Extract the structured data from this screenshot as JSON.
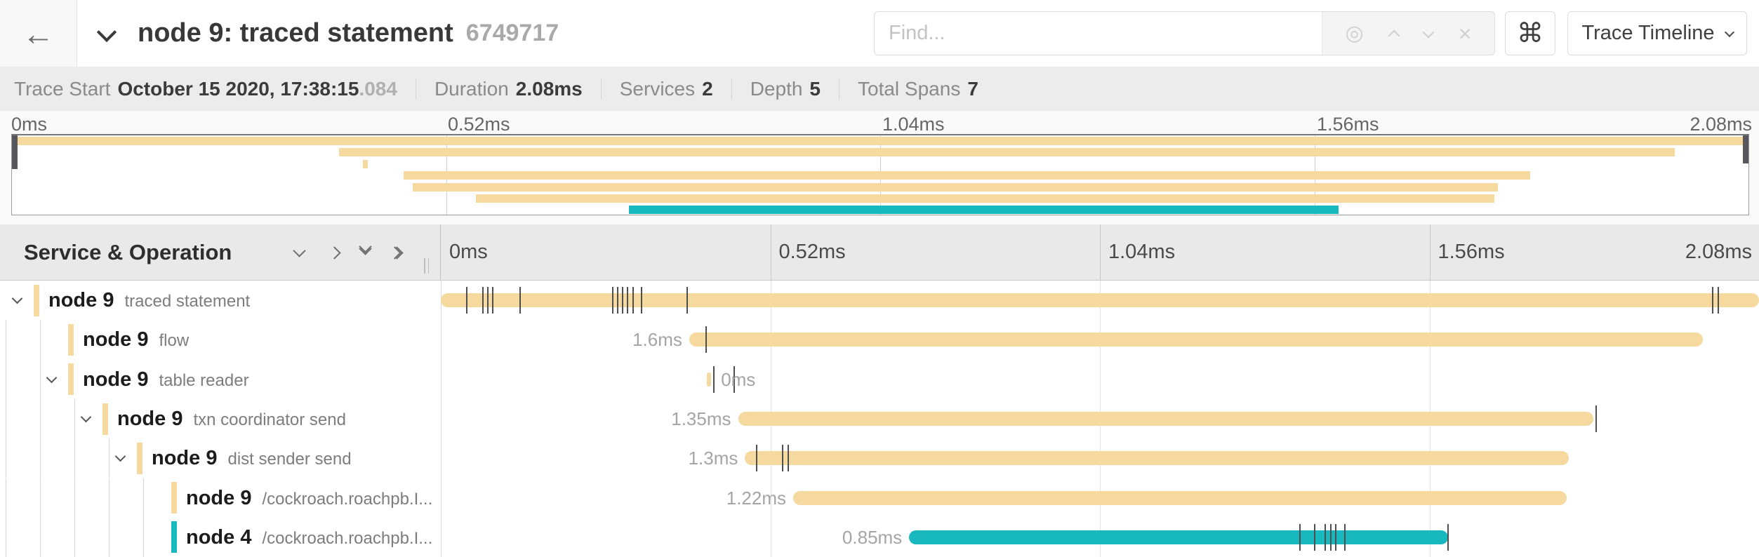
{
  "header": {
    "back_icon": "←",
    "title": "node 9: traced statement",
    "trace_id": "6749717",
    "find_placeholder": "Find...",
    "target_icon": "◎",
    "close_icon": "×",
    "command_symbol": "⌘",
    "view_selector_label": "Trace Timeline"
  },
  "summary": {
    "items": [
      {
        "label": "Trace Start",
        "value": "October 15 2020, 17:38:15",
        "suffix": ".084"
      },
      {
        "label": "Duration",
        "value": "2.08ms",
        "suffix": ""
      },
      {
        "label": "Services",
        "value": "2",
        "suffix": ""
      },
      {
        "label": "Depth",
        "value": "5",
        "suffix": ""
      },
      {
        "label": "Total Spans",
        "value": "7",
        "suffix": ""
      }
    ]
  },
  "timeline": {
    "left_header": "Service & Operation",
    "total_ms": 2.08,
    "axis_ticks": [
      "0ms",
      "0.52ms",
      "1.04ms",
      "1.56ms",
      "2.08ms"
    ]
  },
  "colors": {
    "tan": "#F5D99F",
    "teal": "#17B8BE"
  },
  "spans": [
    {
      "service": "node 9",
      "operation": "traced statement",
      "depth": 0,
      "expandable": true,
      "color": "tan",
      "start_ms": 0,
      "duration_ms": 2.08,
      "duration_label": "",
      "label_side": "none",
      "ticks_ms": [
        0.041,
        0.066,
        0.074,
        0.082,
        0.125,
        0.271,
        0.279,
        0.287,
        0.295,
        0.303,
        0.317,
        0.389,
        2.007,
        2.016
      ]
    },
    {
      "service": "node 9",
      "operation": "flow",
      "depth": 1,
      "expandable": false,
      "color": "tan",
      "start_ms": 0.392,
      "duration_ms": 1.6,
      "duration_label": "1.6ms",
      "label_side": "left",
      "ticks_ms": [
        0.419
      ]
    },
    {
      "service": "node 9",
      "operation": "table reader",
      "depth": 1,
      "expandable": true,
      "color": "tan",
      "start_ms": 0.42,
      "duration_ms": 0.006,
      "duration_label": "0ms",
      "label_side": "right",
      "ticks_ms": [
        0.431,
        0.463
      ]
    },
    {
      "service": "node 9",
      "operation": "txn coordinator send",
      "depth": 2,
      "expandable": true,
      "color": "tan",
      "start_ms": 0.469,
      "duration_ms": 1.35,
      "duration_label": "1.35ms",
      "label_side": "left",
      "ticks_ms": [
        1.823
      ]
    },
    {
      "service": "node 9",
      "operation": "dist sender send",
      "depth": 3,
      "expandable": true,
      "color": "tan",
      "start_ms": 0.48,
      "duration_ms": 1.3,
      "duration_label": "1.3ms",
      "label_side": "left",
      "ticks_ms": [
        0.498,
        0.539,
        0.548
      ]
    },
    {
      "service": "node 9",
      "operation": "/cockroach.roachpb.I...",
      "depth": 4,
      "expandable": false,
      "color": "tan",
      "start_ms": 0.556,
      "duration_ms": 1.22,
      "duration_label": "1.22ms",
      "label_side": "left",
      "ticks_ms": []
    },
    {
      "service": "node 4",
      "operation": "/cockroach.roachpb.I...",
      "depth": 4,
      "expandable": false,
      "color": "teal",
      "start_ms": 0.739,
      "duration_ms": 0.85,
      "duration_label": "0.85ms",
      "label_side": "left",
      "ticks_ms": [
        1.356,
        1.379,
        1.396,
        1.404,
        1.412,
        1.426,
        1.589
      ]
    }
  ]
}
